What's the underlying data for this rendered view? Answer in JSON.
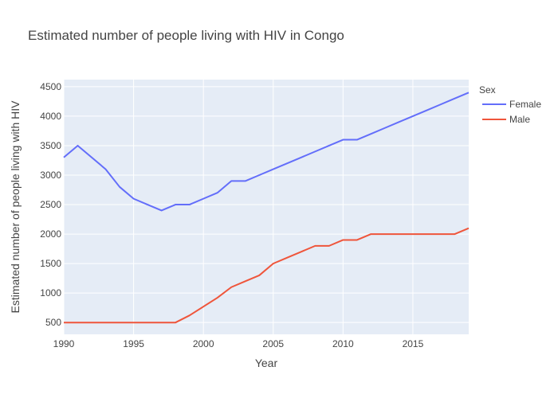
{
  "chart_data": {
    "type": "line",
    "title": "Estimated number of people living with HIV in Congo",
    "xlabel": "Year",
    "ylabel": "Estimated number of people living with HIV",
    "xlim": [
      1990,
      2019
    ],
    "ylim": [
      300,
      4620
    ],
    "xticks": [
      1990,
      1995,
      2000,
      2005,
      2010,
      2015
    ],
    "yticks": [
      500,
      1000,
      1500,
      2000,
      2500,
      3000,
      3500,
      4000,
      4500
    ],
    "grid": true,
    "legend": {
      "title": "Sex",
      "position": "right"
    },
    "x": [
      1990,
      1991,
      1992,
      1993,
      1994,
      1995,
      1996,
      1997,
      1998,
      1999,
      2000,
      2001,
      2002,
      2003,
      2004,
      2005,
      2006,
      2007,
      2008,
      2009,
      2010,
      2011,
      2012,
      2013,
      2014,
      2015,
      2016,
      2017,
      2018,
      2019
    ],
    "series": [
      {
        "name": "Female",
        "color": "#636efa",
        "values": [
          3300,
          3500,
          3300,
          3100,
          2800,
          2600,
          2500,
          2400,
          2500,
          2500,
          2600,
          2700,
          2900,
          2900,
          3000,
          3100,
          3200,
          3300,
          3400,
          3500,
          3600,
          3600,
          3700,
          3800,
          3900,
          4000,
          4100,
          4200,
          4300,
          4400
        ]
      },
      {
        "name": "Male",
        "color": "#ef553b",
        "values": [
          500,
          500,
          500,
          500,
          500,
          500,
          500,
          500,
          500,
          620,
          770,
          920,
          1100,
          1200,
          1300,
          1500,
          1600,
          1700,
          1800,
          1800,
          1900,
          1900,
          2000,
          2000,
          2000,
          2000,
          2000,
          2000,
          2000,
          2100
        ]
      }
    ]
  }
}
